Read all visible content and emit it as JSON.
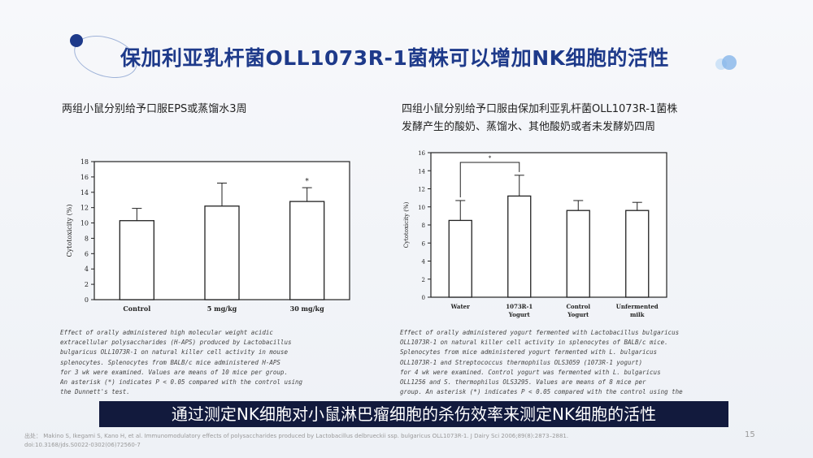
{
  "slide": {
    "title": "保加利亚乳杆菌OLL1073R-1菌株可以增加NK细胞的活性",
    "page_number": "15",
    "subtitle": "通过测定NK细胞对小鼠淋巴瘤细胞的杀伤效率来测定NK细胞的活性",
    "footer": [
      "出处：  Makino S, Ikegami S, Kano H, et al. Immunomodulatory effects of polysaccharides produced by Lactobacillus delbrueckii ssp. bulgaricus OLL1073R-1. J Dairy Sci 2006;89(8):2873–2881.",
      "doi:10.3168/jds.S0022-0302(06)72560-7"
    ]
  },
  "left": {
    "caption": "两组小鼠分别给予口服EPS或蒸馏水3周",
    "description": [
      "Effect of orally administered high molecular weight acidic",
      "extracellular polysaccharides (H-APS) produced by Lactobacillus",
      "bulgaricus OLL1073R-1 on natural killer cell activity in mouse",
      "splenocytes. Splenocytes from BALB/c mice administered H-APS",
      "for 3 wk were examined. Values are means of 10 mice per group.",
      "An asterisk (*) indicates P < 0.05 compared with the control using",
      "the Dunnett's test."
    ]
  },
  "right": {
    "caption_line1": "四组小鼠分别给予口服由保加利亚乳杆菌OLL1073R-1菌株",
    "caption_line2": "发酵产生的酸奶、蒸馏水、其他酸奶或者未发酵奶四周",
    "description": [
      "Effect of orally administered yogurt fermented with Lactobacillus bulgaricus",
      "OLL1073R-1 on natural killer cell activity in splenocytes of BALB/c mice.",
      "Splenocytes from mice administered yogurt fermented with L. bulgaricus",
      "OLL1073R-1 and Streptococcus thermophilus OLS3059 (1073R-1 yogurt)",
      "for 4 wk were examined. Control yogurt was fermented with L. bulgaricus",
      "OLL1256 and S. thermophilus OLS3295. Values are means of 8 mice per",
      "group. An asterisk (*) indicates P < 0.05 compared with the control using the"
    ]
  },
  "chart_data": [
    {
      "type": "bar",
      "ylabel": "Cytotoxicity (%)",
      "categories": [
        "Control",
        "5 mg/kg",
        "30 mg/kg"
      ],
      "values": [
        10.3,
        12.2,
        12.8
      ],
      "errors": [
        1.6,
        3.0,
        1.8
      ],
      "significance": [
        "",
        "",
        "*"
      ],
      "ylim": [
        0,
        18
      ],
      "yticks": [
        "0",
        "2",
        "4",
        "6",
        "8",
        "10",
        "12",
        "14",
        "16",
        "18"
      ]
    },
    {
      "type": "bar",
      "ylabel": "Cytotoxicity (%)",
      "categories": [
        [
          "Water"
        ],
        [
          "1073R-1",
          "Yogurt"
        ],
        [
          "Control",
          "Yogurt"
        ],
        [
          "Unfermented",
          "milk"
        ]
      ],
      "values": [
        8.5,
        11.2,
        9.6,
        9.6
      ],
      "errors": [
        2.2,
        2.3,
        1.1,
        0.9
      ],
      "bracket": {
        "from": 0,
        "to": 1,
        "label": "*"
      },
      "ylim": [
        0,
        16
      ],
      "yticks": [
        "0",
        "2",
        "4",
        "6",
        "8",
        "10",
        "12",
        "14",
        "16"
      ]
    }
  ]
}
